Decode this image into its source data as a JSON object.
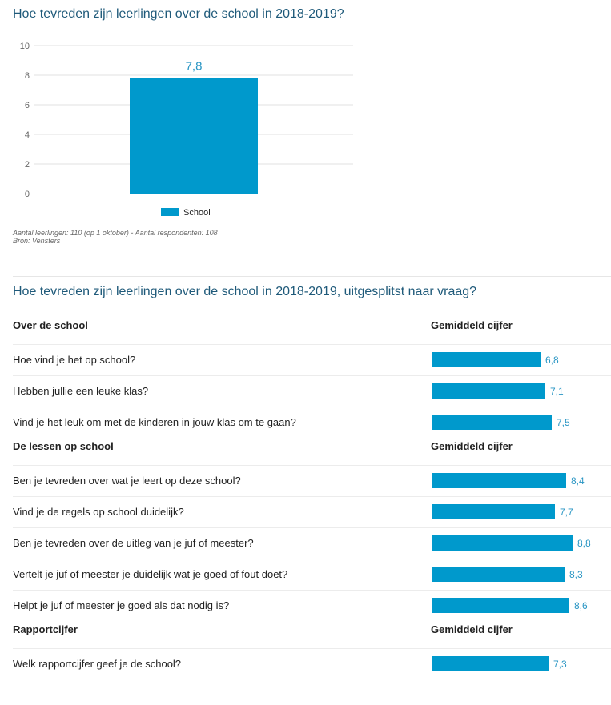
{
  "colors": {
    "bar": "#0099cc",
    "title": "#1f5a7a",
    "label": "#2a96c4"
  },
  "chart_data": [
    {
      "type": "bar",
      "title": "Hoe tevreden zijn leerlingen over de school in 2018-2019?",
      "categories": [
        "School"
      ],
      "series": [
        {
          "name": "School",
          "values": [
            7.8
          ]
        }
      ],
      "data_labels": [
        "7,8"
      ],
      "ylim": [
        0,
        10
      ],
      "yticks": [
        0,
        2,
        4,
        6,
        8,
        10
      ],
      "grid": true,
      "legend": "bottom",
      "notes": [
        "Aantal leerlingen: 110 (op 1 oktober) - Aantal respondenten: 108",
        "Bron: Vensters"
      ]
    },
    {
      "type": "bar",
      "orientation": "horizontal",
      "title": "Hoe tevreden zijn leerlingen over de school in 2018-2019, uitgesplitst naar vraag?",
      "xlim": [
        0,
        10
      ],
      "groups": [
        {
          "title": "Over de school",
          "column_header": "Gemiddeld cijfer",
          "rows": [
            {
              "question": "Hoe vind je het op school?",
              "value": 6.8,
              "label": "6,8"
            },
            {
              "question": "Hebben jullie een leuke klas?",
              "value": 7.1,
              "label": "7,1"
            },
            {
              "question": "Vind je het leuk om met de kinderen in jouw klas om te gaan?",
              "value": 7.5,
              "label": "7,5"
            }
          ]
        },
        {
          "title": "De lessen op school",
          "column_header": "Gemiddeld cijfer",
          "rows": [
            {
              "question": "Ben je tevreden over wat je leert op deze school?",
              "value": 8.4,
              "label": "8,4"
            },
            {
              "question": "Vind je de regels op school duidelijk?",
              "value": 7.7,
              "label": "7,7"
            },
            {
              "question": "Ben je tevreden over de uitleg van je juf of meester?",
              "value": 8.8,
              "label": "8,8"
            },
            {
              "question": "Vertelt je juf of meester je duidelijk wat je goed of fout doet?",
              "value": 8.3,
              "label": "8,3"
            },
            {
              "question": "Helpt je juf of meester je goed als dat nodig is?",
              "value": 8.6,
              "label": "8,6"
            }
          ]
        },
        {
          "title": "Rapportcijfer",
          "column_header": "Gemiddeld cijfer",
          "rows": [
            {
              "question": "Welk rapportcijfer geef je de school?",
              "value": 7.3,
              "label": "7,3"
            }
          ]
        }
      ]
    }
  ]
}
